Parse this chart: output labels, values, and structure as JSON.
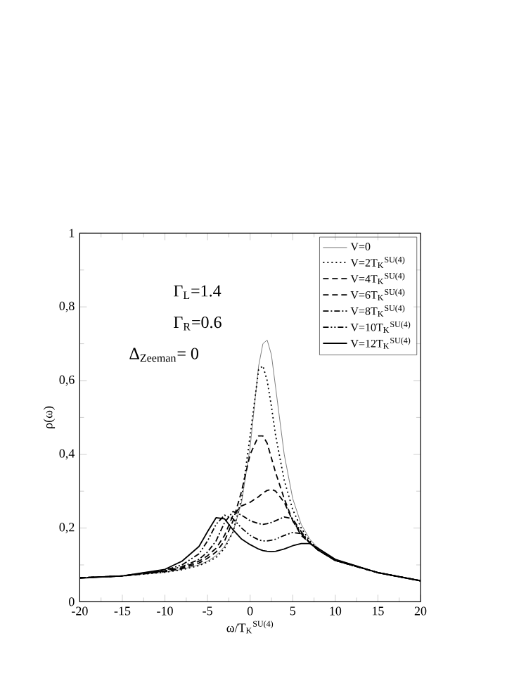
{
  "chart_data": {
    "type": "line",
    "xlabel": "ω/T$_{K}$$^{SU(4)}$",
    "ylabel": "ρ(ω)",
    "annotations": [
      "Γ$_{L}$=1.4",
      "Γ$_{R}$=0.6",
      "Δ$_{Zeeman}$= 0"
    ],
    "x": [
      -20,
      -15,
      -10,
      -8,
      -6,
      -5,
      -4,
      -3,
      -2,
      -1,
      0,
      1,
      1.5,
      2,
      2.5,
      3,
      4,
      5,
      6,
      7,
      8,
      10,
      15,
      20
    ],
    "xlim": [
      -20,
      20
    ],
    "ylim": [
      0,
      1
    ],
    "xticks": [
      -20,
      -15,
      -10,
      -5,
      0,
      5,
      10,
      15,
      20
    ],
    "yticks": [
      0,
      {
        "value": 0.2,
        "label": "0,2"
      },
      {
        "value": 0.4,
        "label": "0,4"
      },
      {
        "value": 0.6,
        "label": "0,6"
      },
      {
        "value": 0.8,
        "label": "0,8"
      },
      1
    ],
    "legend": "top right",
    "series": [
      {
        "name": "V=0",
        "color": "#808080",
        "line_style": "solid",
        "values": [
          0.065,
          0.07,
          0.08,
          0.088,
          0.1,
          0.11,
          0.125,
          0.15,
          0.19,
          0.27,
          0.42,
          0.64,
          0.7,
          0.71,
          0.67,
          0.58,
          0.4,
          0.28,
          0.21,
          0.17,
          0.145,
          0.115,
          0.08,
          0.057
        ]
      },
      {
        "name": "V=2T$_{K}$$^{SU(4)}$",
        "color": "#000000",
        "line_style": "dotted",
        "values": [
          0.065,
          0.07,
          0.08,
          0.087,
          0.098,
          0.108,
          0.12,
          0.145,
          0.19,
          0.28,
          0.45,
          0.63,
          0.64,
          0.6,
          0.53,
          0.45,
          0.33,
          0.25,
          0.2,
          0.165,
          0.143,
          0.113,
          0.079,
          0.057
        ]
      },
      {
        "name": "V=4T$_{K}$$^{SU(4)}$",
        "color": "#000000",
        "line_style": "dashed",
        "values": [
          0.065,
          0.07,
          0.082,
          0.09,
          0.105,
          0.118,
          0.135,
          0.165,
          0.22,
          0.3,
          0.4,
          0.45,
          0.45,
          0.43,
          0.39,
          0.35,
          0.28,
          0.22,
          0.185,
          0.16,
          0.14,
          0.112,
          0.079,
          0.057
        ]
      },
      {
        "name": "V=6T$_{K}$$^{SU(4)}$",
        "color": "#000000",
        "line_style": "dashed",
        "values": [
          0.065,
          0.07,
          0.083,
          0.092,
          0.11,
          0.125,
          0.145,
          0.18,
          0.235,
          0.26,
          0.27,
          0.285,
          0.295,
          0.302,
          0.305,
          0.3,
          0.27,
          0.22,
          0.18,
          0.16,
          0.14,
          0.112,
          0.079,
          0.057
        ]
      },
      {
        "name": "V=8T$_{K}$$^{SU(4)}$",
        "color": "#000000",
        "line_style": "dashdot",
        "values": [
          0.065,
          0.07,
          0.084,
          0.095,
          0.115,
          0.135,
          0.165,
          0.215,
          0.245,
          0.235,
          0.22,
          0.212,
          0.21,
          0.212,
          0.215,
          0.22,
          0.23,
          0.225,
          0.19,
          0.16,
          0.14,
          0.112,
          0.079,
          0.057
        ]
      },
      {
        "name": "V=10T$_{K}$$^{SU(4)}$",
        "color": "#000000",
        "line_style": "dashdotdot",
        "values": [
          0.065,
          0.07,
          0.086,
          0.1,
          0.13,
          0.165,
          0.21,
          0.235,
          0.225,
          0.2,
          0.18,
          0.168,
          0.165,
          0.165,
          0.167,
          0.17,
          0.18,
          0.188,
          0.185,
          0.16,
          0.14,
          0.112,
          0.079,
          0.057
        ]
      },
      {
        "name": "V=12T$_{K}$$^{SU(4)}$",
        "color": "#000000",
        "line_style": "solid",
        "values": [
          0.064,
          0.07,
          0.088,
          0.11,
          0.15,
          0.19,
          0.228,
          0.225,
          0.195,
          0.17,
          0.155,
          0.143,
          0.139,
          0.137,
          0.136,
          0.137,
          0.143,
          0.152,
          0.158,
          0.158,
          0.145,
          0.115,
          0.079,
          0.057
        ]
      }
    ]
  }
}
